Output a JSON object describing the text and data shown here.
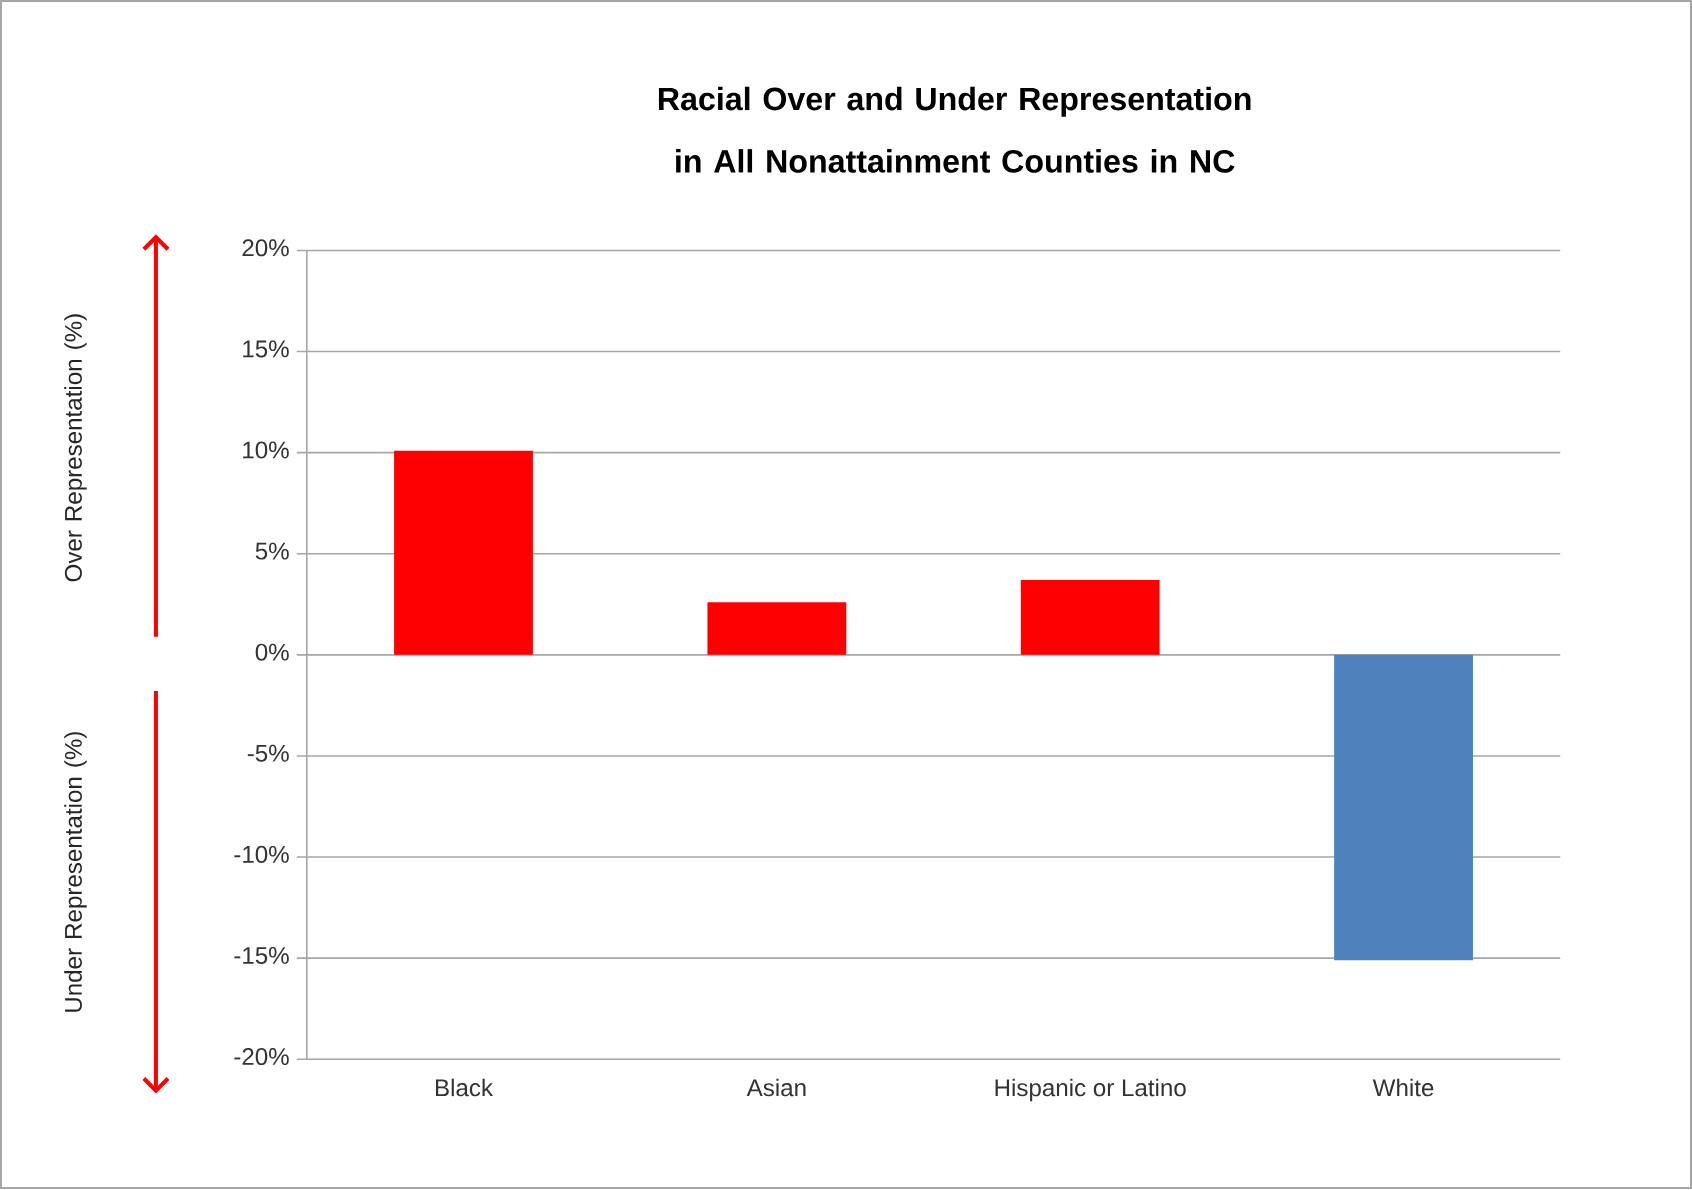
{
  "chart_data": {
    "type": "bar",
    "title": "Racial Over and Under Representation in All Nonattainment Counties in NC",
    "categories": [
      "Black",
      "Asian",
      "Hispanic or Latino",
      "White"
    ],
    "values": [
      10.1,
      2.6,
      3.7,
      -15.1
    ],
    "colors": [
      "#ff0000",
      "#ff0000",
      "#ff0000",
      "#4f81bd"
    ],
    "ylim": [
      -20,
      20
    ],
    "yticks": [
      {
        "value": -20,
        "label": "-20%"
      },
      {
        "value": -15,
        "label": "-15%"
      },
      {
        "value": -10,
        "label": "-10%"
      },
      {
        "value": -5,
        "label": "-5%"
      },
      {
        "value": 0,
        "label": "0%"
      },
      {
        "value": 5,
        "label": "5%"
      },
      {
        "value": 10,
        "label": "10%"
      },
      {
        "value": 15,
        "label": "15%"
      },
      {
        "value": 20,
        "label": "20%"
      }
    ],
    "grid": "y",
    "annotations": [
      "Over Representation (%)",
      "Under Representation (%)"
    ]
  }
}
